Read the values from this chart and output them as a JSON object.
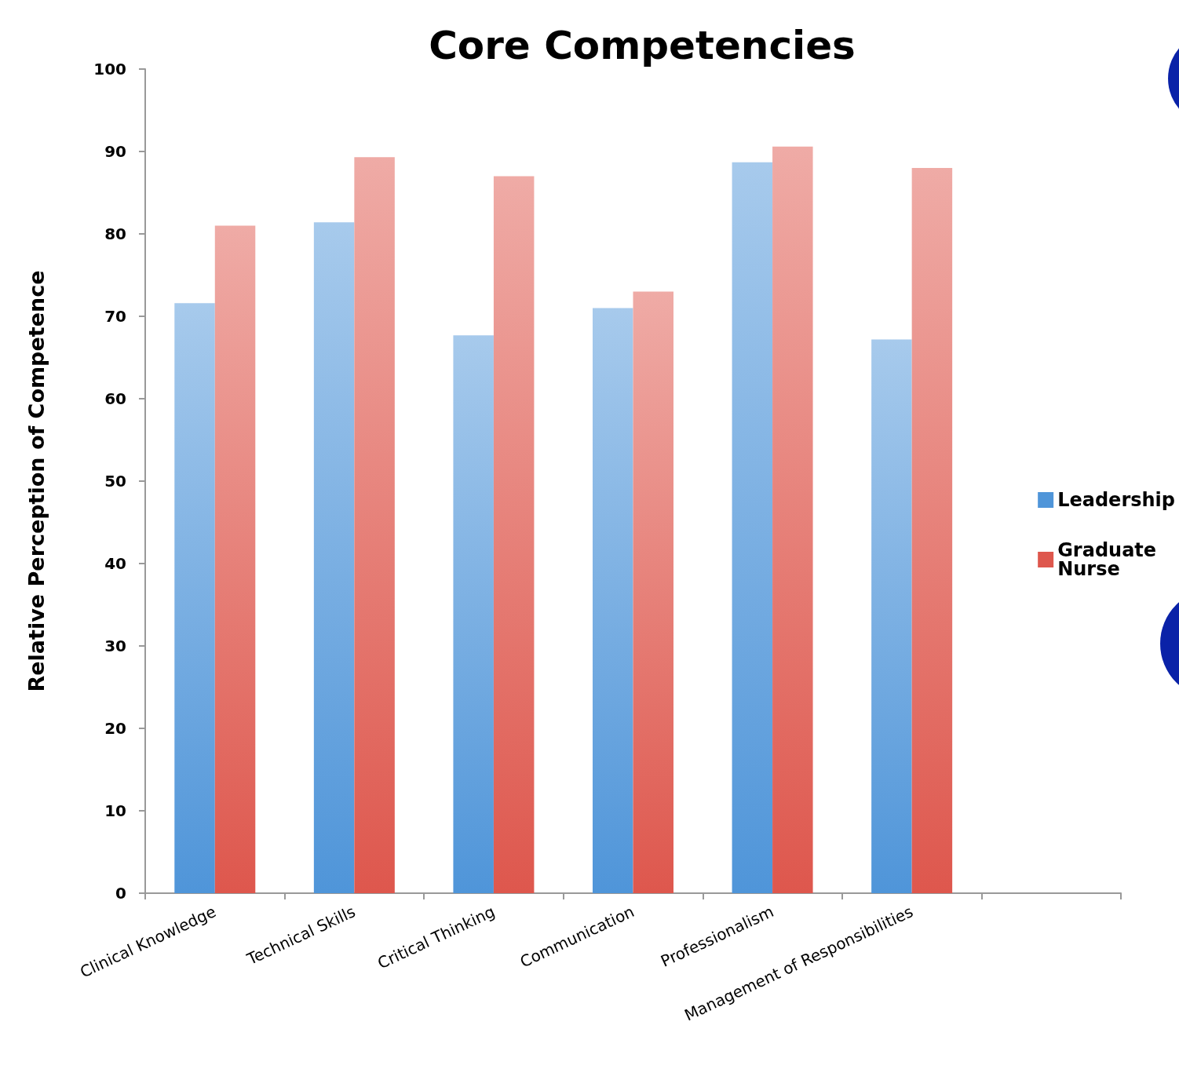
{
  "chart_data": {
    "type": "bar",
    "title": "Core Competencies",
    "ylabel": "Relative Perception of Competence",
    "categories": [
      "Clinical Knowledge",
      "Technical Skills",
      "Critical Thinking",
      "Communication",
      "Professionalism",
      "Management of Responsibilities",
      null
    ],
    "series": [
      {
        "name": "Leadership",
        "color": "#4f95d9",
        "values": [
          71.6,
          81.4,
          67.7,
          71.0,
          88.7,
          67.2,
          null
        ]
      },
      {
        "name": "Graduate Nurse",
        "color": "#de574d",
        "values": [
          81.0,
          89.3,
          87.0,
          73.0,
          90.6,
          88.0,
          null
        ]
      }
    ],
    "ylim": [
      0,
      100
    ],
    "yticks": [
      0,
      10,
      20,
      30,
      40,
      50,
      60,
      70,
      80,
      90,
      100
    ],
    "grid": false,
    "legend": "right"
  }
}
